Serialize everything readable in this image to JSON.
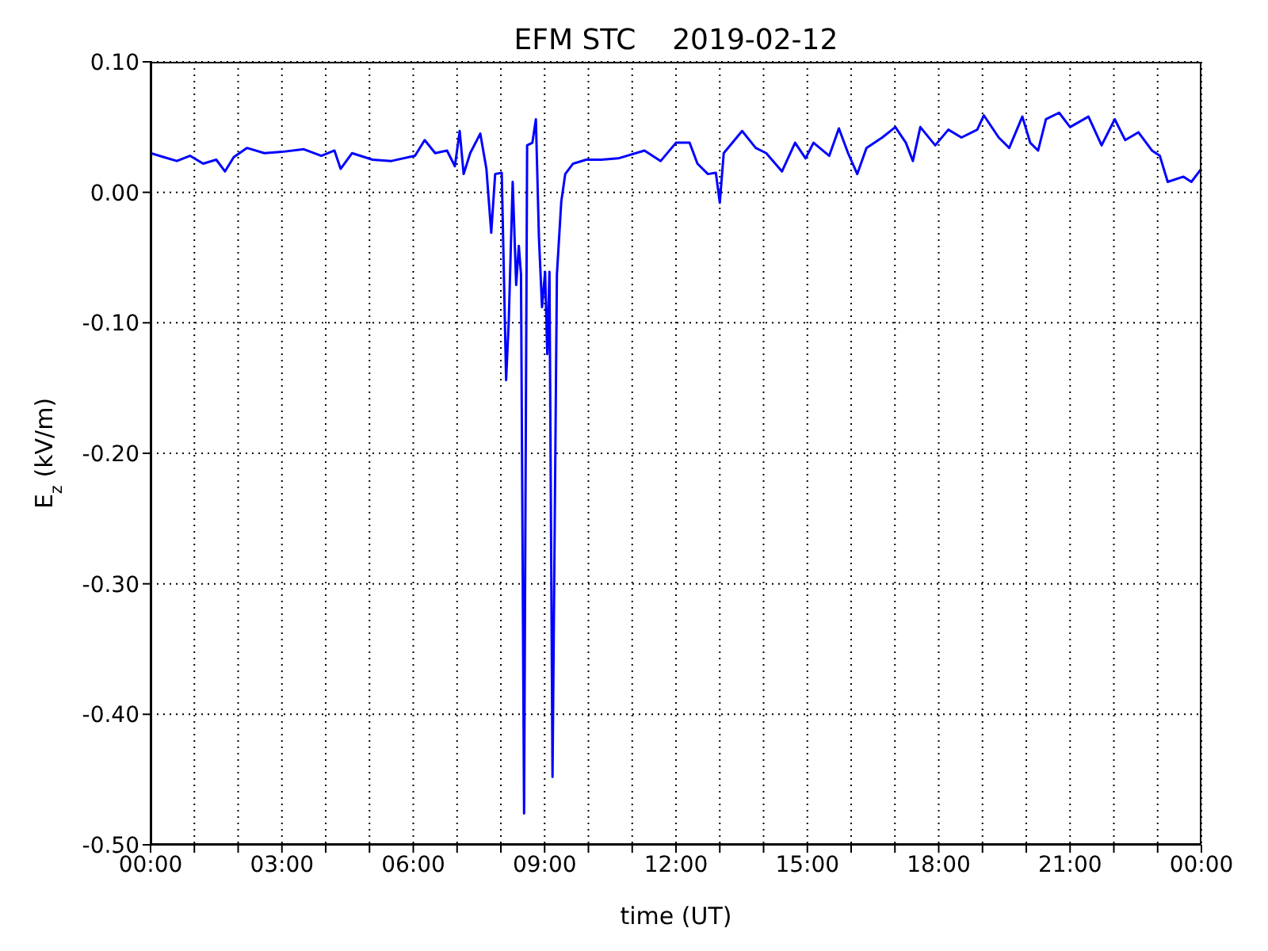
{
  "chart_data": {
    "type": "line",
    "title": "EFM STC    2019-02-12",
    "xlabel": "time (UT)",
    "ylabel": "E$_{z}$ (kV/m)",
    "x": [
      0,
      0.3,
      0.6,
      0.9,
      1.2,
      1.5,
      1.7,
      1.9,
      2.2,
      2.6,
      3.0,
      3.5,
      3.9,
      4.2,
      4.34,
      4.6,
      5.07,
      5.5,
      6.04,
      6.26,
      6.5,
      6.77,
      6.95,
      7.06,
      7.15,
      7.3,
      7.53,
      7.67,
      7.78,
      7.87,
      8.02,
      8.12,
      8.18,
      8.27,
      8.35,
      8.41,
      8.46,
      8.53,
      8.6,
      8.72,
      8.8,
      8.87,
      8.94,
      9.01,
      9.06,
      9.11,
      9.18,
      9.28,
      9.38,
      9.47,
      9.65,
      9.95,
      10.3,
      10.68,
      11.28,
      11.65,
      12.0,
      12.31,
      12.49,
      12.73,
      12.91,
      13.0,
      13.09,
      13.51,
      13.82,
      14.06,
      14.42,
      14.72,
      14.96,
      15.14,
      15.5,
      15.72,
      15.93,
      16.14,
      16.35,
      16.71,
      17.01,
      17.25,
      17.41,
      17.58,
      17.92,
      18.22,
      18.52,
      18.88,
      19.03,
      19.37,
      19.61,
      19.91,
      20.09,
      20.27,
      20.45,
      20.75,
      21.0,
      21.42,
      21.72,
      22.02,
      22.26,
      22.56,
      22.87,
      23.05,
      23.23,
      23.59,
      23.77,
      23.95,
      24
    ],
    "series": [
      {
        "color": "#0000ff",
        "values": [
          0.03,
          0.027,
          0.024,
          0.028,
          0.022,
          0.025,
          0.016,
          0.027,
          0.034,
          0.03,
          0.031,
          0.033,
          0.028,
          0.032,
          0.018,
          0.03,
          0.025,
          0.024,
          0.028,
          0.04,
          0.03,
          0.032,
          0.02,
          0.047,
          0.014,
          0.03,
          0.045,
          0.018,
          -0.031,
          0.014,
          0.015,
          -0.144,
          -0.099,
          0.008,
          -0.071,
          -0.041,
          -0.063,
          -0.476,
          0.036,
          0.038,
          0.056,
          -0.035,
          -0.088,
          -0.061,
          -0.124,
          -0.061,
          -0.448,
          -0.063,
          -0.007,
          0.014,
          0.022,
          0.025,
          0.025,
          0.026,
          0.032,
          0.024,
          0.038,
          0.038,
          0.022,
          0.014,
          0.015,
          -0.008,
          0.03,
          0.047,
          0.034,
          0.03,
          0.016,
          0.038,
          0.026,
          0.038,
          0.028,
          0.049,
          0.03,
          0.014,
          0.034,
          0.042,
          0.05,
          0.038,
          0.024,
          0.05,
          0.036,
          0.048,
          0.042,
          0.048,
          0.059,
          0.042,
          0.034,
          0.058,
          0.038,
          0.032,
          0.056,
          0.061,
          0.05,
          0.058,
          0.036,
          0.056,
          0.04,
          0.046,
          0.032,
          0.028,
          0.008,
          0.012,
          0.008,
          0.016,
          0.018
        ]
      }
    ],
    "xlim": [
      0,
      24
    ],
    "xticks": [
      {
        "value": 0,
        "label": "00:00"
      },
      {
        "value": 1,
        "label": null
      },
      {
        "value": 2,
        "label": null
      },
      {
        "value": 3,
        "label": "03:00"
      },
      {
        "value": 4,
        "label": null
      },
      {
        "value": 5,
        "label": null
      },
      {
        "value": 6,
        "label": "06:00"
      },
      {
        "value": 7,
        "label": null
      },
      {
        "value": 8,
        "label": null
      },
      {
        "value": 9,
        "label": "09:00"
      },
      {
        "value": 10,
        "label": null
      },
      {
        "value": 11,
        "label": null
      },
      {
        "value": 12,
        "label": "12:00"
      },
      {
        "value": 13,
        "label": null
      },
      {
        "value": 14,
        "label": null
      },
      {
        "value": 15,
        "label": "15:00"
      },
      {
        "value": 16,
        "label": null
      },
      {
        "value": 17,
        "label": null
      },
      {
        "value": 18,
        "label": "18:00"
      },
      {
        "value": 19,
        "label": null
      },
      {
        "value": 20,
        "label": null
      },
      {
        "value": 21,
        "label": "21:00"
      },
      {
        "value": 22,
        "label": null
      },
      {
        "value": 23,
        "label": null
      },
      {
        "value": 24,
        "label": "00:00"
      }
    ],
    "ylim": [
      -0.5,
      0.1
    ],
    "yticks": [
      {
        "value": -0.5,
        "label": "-0.50"
      },
      {
        "value": -0.4,
        "label": "-0.40"
      },
      {
        "value": -0.3,
        "label": "-0.30"
      },
      {
        "value": -0.2,
        "label": "-0.20"
      },
      {
        "value": -0.1,
        "label": "-0.10"
      },
      {
        "value": 0,
        "label": "0.00"
      },
      {
        "value": 0.1,
        "label": "0.10"
      }
    ],
    "grid": true,
    "legend": false,
    "marker": "none",
    "line_style": "solid"
  }
}
